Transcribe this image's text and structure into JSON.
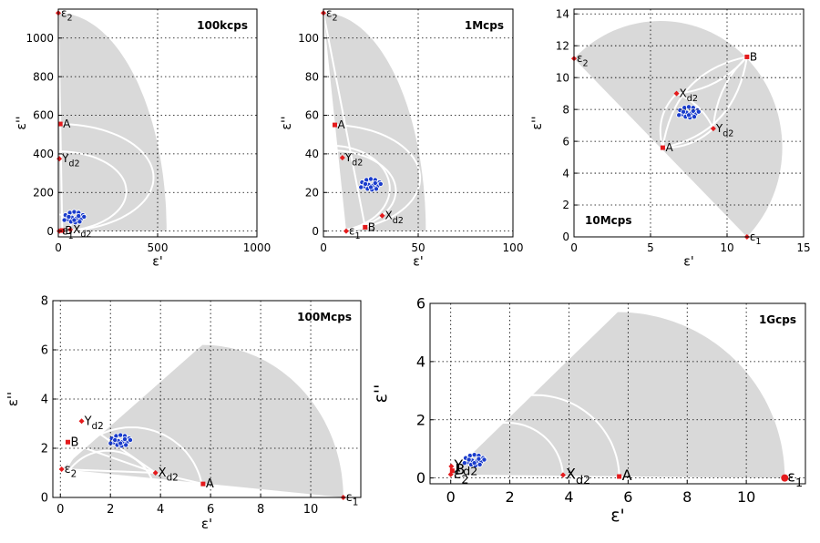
{
  "chart_data": [
    {
      "type": "scatter",
      "title": "100kcps",
      "xlabel": "ε'",
      "ylabel": "ε''",
      "xlim": [
        0,
        1000
      ],
      "ylim": [
        -30,
        1150
      ],
      "xticks": [
        "0",
        "500",
        "1000"
      ],
      "xtick_values": [
        0,
        500,
        1000
      ],
      "yticks": [
        "0",
        "200",
        "400",
        "600",
        "800",
        "1000"
      ],
      "ytick_values": [
        0,
        200,
        400,
        600,
        800,
        1000
      ],
      "grid": true,
      "points": [
        {
          "name": "ε2",
          "main": "ε",
          "sub": "2",
          "x": 0,
          "y": 1130
        },
        {
          "name": "A",
          "main": "A",
          "sub": "",
          "x": 10,
          "y": 555
        },
        {
          "name": "Yd2",
          "main": "Y",
          "sub": "d2",
          "x": 5,
          "y": 375
        },
        {
          "name": "Xd2",
          "main": "X",
          "sub": "d2",
          "x": 60,
          "y": 8
        },
        {
          "name": "B",
          "main": "B",
          "sub": "",
          "x": 20,
          "y": 3
        },
        {
          "name": "ε1",
          "main": "ε",
          "sub": "1",
          "x": 5,
          "y": 0
        }
      ],
      "cluster": {
        "x": 80,
        "y": 70
      }
    },
    {
      "type": "scatter",
      "title": "1Mcps",
      "xlabel": "ε'",
      "ylabel": "ε''",
      "xlim": [
        0,
        100
      ],
      "ylim": [
        -3,
        115
      ],
      "xticks": [
        "0",
        "50",
        "100"
      ],
      "xtick_values": [
        0,
        50,
        100
      ],
      "yticks": [
        "0",
        "20",
        "40",
        "60",
        "80",
        "100"
      ],
      "ytick_values": [
        0,
        20,
        40,
        60,
        80,
        100
      ],
      "grid": true,
      "points": [
        {
          "name": "ε2",
          "main": "ε",
          "sub": "2",
          "x": 0,
          "y": 113
        },
        {
          "name": "A",
          "main": "A",
          "sub": "",
          "x": 6,
          "y": 55
        },
        {
          "name": "Yd2",
          "main": "Y",
          "sub": "d2",
          "x": 10,
          "y": 38
        },
        {
          "name": "Xd2",
          "main": "X",
          "sub": "d2",
          "x": 31,
          "y": 8
        },
        {
          "name": "B",
          "main": "B",
          "sub": "",
          "x": 22,
          "y": 2
        },
        {
          "name": "ε1",
          "main": "ε",
          "sub": "1",
          "x": 12,
          "y": 0
        }
      ],
      "cluster": {
        "x": 25,
        "y": 24
      }
    },
    {
      "type": "scatter",
      "title": "10Mcps",
      "xlabel": "ε'",
      "ylabel": "ε''",
      "xlim": [
        0,
        15
      ],
      "ylim": [
        0,
        14.3
      ],
      "xticks": [
        "0",
        "5",
        "10",
        "15"
      ],
      "xtick_values": [
        0,
        5,
        10,
        15
      ],
      "yticks": [
        "0",
        "2",
        "4",
        "6",
        "8",
        "10",
        "12",
        "14"
      ],
      "ytick_values": [
        0,
        2,
        4,
        6,
        8,
        10,
        12,
        14
      ],
      "grid": true,
      "points": [
        {
          "name": "ε2",
          "main": "ε",
          "sub": "2",
          "x": 0,
          "y": 11.2
        },
        {
          "name": "B",
          "main": "B",
          "sub": "",
          "x": 11.3,
          "y": 11.3
        },
        {
          "name": "Xd2",
          "main": "X",
          "sub": "d2",
          "x": 6.7,
          "y": 9.0
        },
        {
          "name": "Yd2",
          "main": "Y",
          "sub": "d2",
          "x": 9.1,
          "y": 6.8
        },
        {
          "name": "A",
          "main": "A",
          "sub": "",
          "x": 5.8,
          "y": 5.6
        },
        {
          "name": "ε1",
          "main": "ε",
          "sub": "1",
          "x": 11.3,
          "y": 0
        }
      ],
      "cluster": {
        "x": 7.5,
        "y": 7.8
      }
    },
    {
      "type": "scatter",
      "title": "100Mcps",
      "xlabel": "ε'",
      "ylabel": "ε''",
      "xlim": [
        -0.3,
        12
      ],
      "ylim": [
        0,
        8
      ],
      "xticks": [
        "0",
        "2",
        "4",
        "6",
        "8",
        "10"
      ],
      "xtick_values": [
        0,
        2,
        4,
        6,
        8,
        10
      ],
      "yticks": [
        "0",
        "2",
        "4",
        "6",
        "8"
      ],
      "ytick_values": [
        0,
        2,
        4,
        6,
        8
      ],
      "grid": true,
      "points": [
        {
          "name": "Yd2",
          "main": "Y",
          "sub": "d2",
          "x": 0.85,
          "y": 3.1
        },
        {
          "name": "B",
          "main": "B",
          "sub": "",
          "x": 0.3,
          "y": 2.25
        },
        {
          "name": "ε2",
          "main": "ε",
          "sub": "2",
          "x": 0.05,
          "y": 1.15
        },
        {
          "name": "Xd2",
          "main": "X",
          "sub": "d2",
          "x": 3.8,
          "y": 1.0
        },
        {
          "name": "A",
          "main": "A",
          "sub": "",
          "x": 5.7,
          "y": 0.55
        },
        {
          "name": "ε1",
          "main": "ε",
          "sub": "1",
          "x": 11.3,
          "y": 0
        }
      ],
      "cluster": {
        "x": 2.4,
        "y": 2.3
      }
    },
    {
      "type": "scatter",
      "title": "1Gcps",
      "xlabel": "ε'",
      "ylabel": "ε''",
      "xlim": [
        -0.7,
        12
      ],
      "ylim": [
        -0.2,
        6
      ],
      "xticks": [
        "0",
        "2",
        "4",
        "6",
        "8",
        "10"
      ],
      "xtick_values": [
        0,
        2,
        4,
        6,
        8,
        10
      ],
      "yticks": [
        "0",
        "2",
        "4",
        "6"
      ],
      "ytick_values": [
        0,
        2,
        4,
        6
      ],
      "grid": true,
      "points": [
        {
          "name": "Yd2",
          "main": "Y",
          "sub": "d2",
          "x": 0.02,
          "y": 0.4
        },
        {
          "name": "B",
          "main": "B",
          "sub": "",
          "x": 0.05,
          "y": 0.25
        },
        {
          "name": "ε2",
          "main": "ε",
          "sub": "2",
          "x": 0.0,
          "y": 0.12
        },
        {
          "name": "Xd2",
          "main": "X",
          "sub": "d2",
          "x": 3.8,
          "y": 0.1
        },
        {
          "name": "A",
          "main": "A",
          "sub": "",
          "x": 5.7,
          "y": 0.05
        },
        {
          "name": "ε1",
          "main": "ε",
          "sub": "1",
          "x": 11.3,
          "y": 0
        }
      ],
      "cluster": {
        "x": 0.8,
        "y": 0.6
      }
    }
  ],
  "colors": {
    "shade": "#d9d9d9",
    "marker": "#e41a1c",
    "cluster": "#1a3ccc",
    "curve": "#ffffff",
    "grid": "#000000"
  }
}
